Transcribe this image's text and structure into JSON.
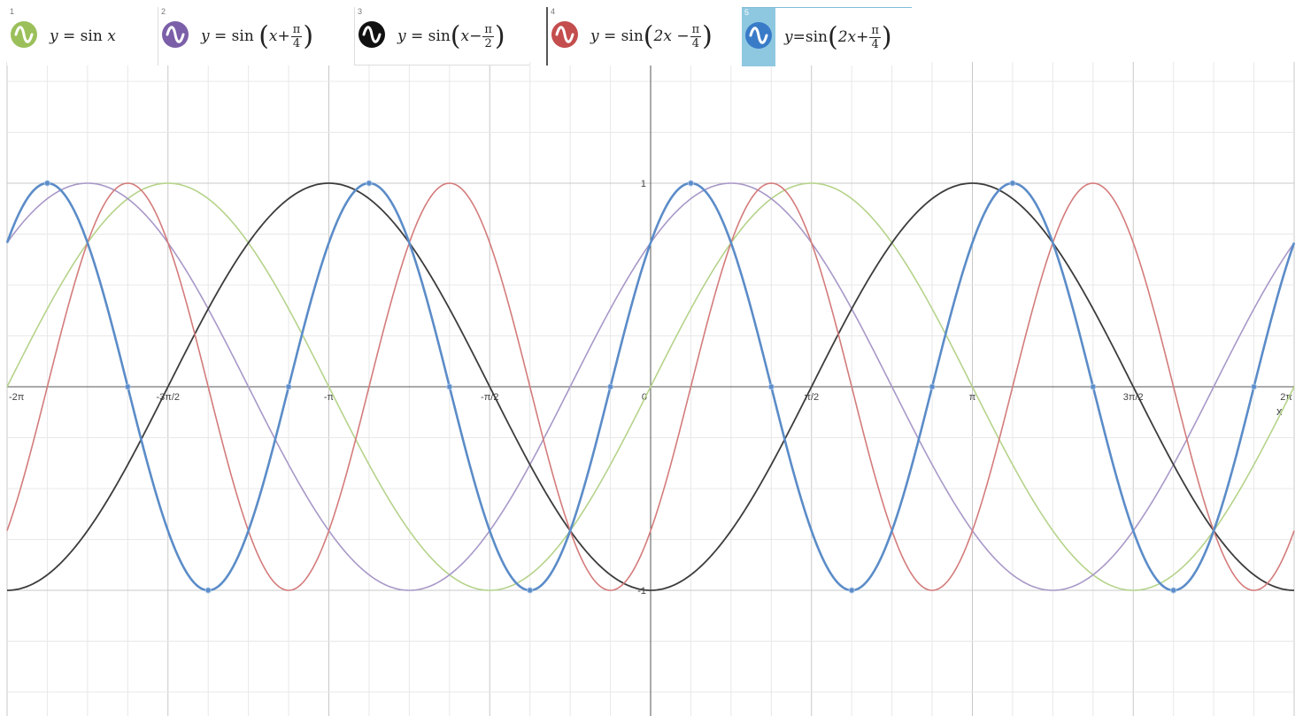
{
  "expressions": [
    {
      "index": "1",
      "lhs": "y",
      "eq": "=",
      "fn": "sin",
      "arg": "x",
      "color": "#9bc05b",
      "icon": "sine-wave-icon"
    },
    {
      "index": "2",
      "lhs": "y",
      "eq": "=",
      "fn": "sin",
      "arg_pre": "x",
      "op": "+",
      "num": "π",
      "den": "4",
      "color": "#7b5fa8",
      "icon": "sine-wave-icon"
    },
    {
      "index": "3",
      "lhs": "y",
      "eq": "=",
      "fn": "sin",
      "arg_pre": "x",
      "op": "−",
      "num": "π",
      "den": "2",
      "color": "#111111",
      "icon": "sine-wave-icon"
    },
    {
      "index": "4",
      "lhs": "y",
      "eq": "=",
      "fn": "sin",
      "arg_pre": "2x",
      "op": "−",
      "num": "π",
      "den": "4",
      "color": "#c44d4d",
      "icon": "sine-wave-icon"
    },
    {
      "index": "5",
      "lhs": "y",
      "eq": "=",
      "fn": "sin",
      "arg_pre": "2x",
      "op": "+",
      "num": "π",
      "den": "4",
      "color": "#3a7bc8",
      "icon": "sine-wave-icon"
    }
  ],
  "chart_data": {
    "type": "line",
    "xlim": [
      -6.2832,
      6.2832
    ],
    "ylim": [
      -1.62,
      1.62
    ],
    "x_ticks": [
      {
        "value": -6.2832,
        "label": "-2π"
      },
      {
        "value": -4.7124,
        "label": "-3π/2"
      },
      {
        "value": -3.1416,
        "label": "-π"
      },
      {
        "value": -1.5708,
        "label": "-π/2"
      },
      {
        "value": 0,
        "label": "0"
      },
      {
        "value": 1.5708,
        "label": "π/2"
      },
      {
        "value": 3.1416,
        "label": "π"
      },
      {
        "value": 4.7124,
        "label": "3π/2"
      },
      {
        "value": 6.2832,
        "label": "2π"
      }
    ],
    "y_ticks": [
      {
        "value": 1,
        "label": "1"
      },
      {
        "value": -1,
        "label": "-1"
      }
    ],
    "xlabel": "x",
    "grid": true,
    "series": [
      {
        "expr": "sin(x)",
        "a": 1,
        "b": 0,
        "color": "#b5d38a",
        "width": 1.6,
        "points": false
      },
      {
        "expr": "sin(x+π/4)",
        "a": 1,
        "b": 0.7854,
        "color": "#a898c8",
        "width": 1.6,
        "points": false
      },
      {
        "expr": "sin(x−π/2)",
        "a": 1,
        "b": -1.5708,
        "color": "#3c3c3c",
        "width": 1.8,
        "points": false
      },
      {
        "expr": "sin(2x−π/4)",
        "a": 2,
        "b": -0.7854,
        "color": "#d47b7b",
        "width": 1.6,
        "points": false
      },
      {
        "expr": "sin(2x+π/4)",
        "a": 2,
        "b": 0.7854,
        "color": "#5b8cc8",
        "width": 2.6,
        "points": true
      }
    ]
  }
}
